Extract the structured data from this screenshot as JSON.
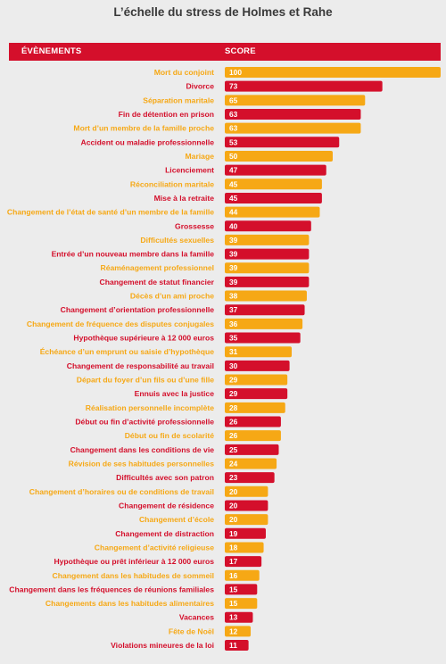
{
  "title": "L’échelle du stress de Holmes et Rahe",
  "header": {
    "events_label": "ÉVÈNEMENTS",
    "score_label": "SCORE"
  },
  "colors": {
    "header": "#d40f2b",
    "red": "#d40f2b",
    "orange": "#f6a815",
    "background": "#ececec"
  },
  "chart_data": {
    "type": "bar",
    "orientation": "horizontal",
    "xlim": [
      0,
      100
    ],
    "categories": [
      "Mort du conjoint",
      "Divorce",
      "Séparation maritale",
      "Fin de détention en prison",
      "Mort d’un membre de la famille proche",
      "Accident ou maladie professionnelle",
      "Mariage",
      "Licenciement",
      "Réconciliation maritale",
      "Mise à la retraite",
      "Changement de l’état de santé d’un membre de la famille",
      "Grossesse",
      "Difficultés sexuelles",
      "Entrée d’un nouveau membre dans la famille",
      "Réaménagement professionnel",
      "Changement de statut financier",
      "Décès d’un ami proche",
      "Changement d’orientation professionnelle",
      "Changement de fréquence des disputes conjugales",
      "Hypothèque supérieure à 12 000 euros",
      "Échéance d’un emprunt ou saisie d’hypothèque",
      "Changement de responsabilité au travail",
      "Départ du foyer d’un fils ou d’une fille",
      "Ennuis avec la justice",
      "Réalisation personnelle incomplète",
      "Début ou fin d’activité professionnelle",
      "Début ou fin de scolarité",
      "Changement dans les conditions de vie",
      "Révision de ses habitudes personnelles",
      "Difficultés avec son patron",
      "Changement d’horaires ou de conditions de travail",
      "Changement de résidence",
      "Changement d’école",
      "Changement de distraction",
      "Changement d’activité religieuse",
      "Hypothèque ou prêt inférieur à 12 000 euros",
      "Changement dans les habitudes de sommeil",
      "Changement dans les fréquences de réunions familiales",
      "Changements dans les habitudes alimentaires",
      "Vacances",
      "Fête de Noël",
      "Violations mineures de la loi"
    ],
    "values": [
      100,
      73,
      65,
      63,
      63,
      53,
      50,
      47,
      45,
      45,
      44,
      40,
      39,
      39,
      39,
      39,
      38,
      37,
      36,
      35,
      31,
      30,
      29,
      29,
      28,
      26,
      26,
      25,
      24,
      23,
      20,
      20,
      20,
      19,
      18,
      17,
      16,
      15,
      15,
      13,
      12,
      11
    ],
    "value_labels": [
      "100",
      "73",
      "65",
      "63",
      "63",
      "53",
      "50",
      "47",
      "45",
      "45",
      "44",
      "40",
      "39",
      "39",
      "39",
      "39",
      "38",
      "37",
      "36",
      "35",
      "31",
      "30",
      "29",
      "29",
      "28",
      "26",
      "26",
      "25",
      "24",
      "23",
      "20",
      "20",
      "20",
      "19",
      "18",
      "17",
      "16",
      "15",
      "15",
      "13",
      "12",
      "11"
    ],
    "bar_colors": [
      "orange",
      "red",
      "orange",
      "red",
      "orange",
      "red",
      "orange",
      "red",
      "orange",
      "red",
      "orange",
      "red",
      "orange",
      "red",
      "orange",
      "red",
      "orange",
      "red",
      "orange",
      "red",
      "orange",
      "red",
      "orange",
      "red",
      "orange",
      "red",
      "orange",
      "red",
      "orange",
      "red",
      "orange",
      "red",
      "orange",
      "red",
      "orange",
      "red",
      "orange",
      "red",
      "orange",
      "red",
      "orange",
      "red"
    ],
    "xlabel": "",
    "ylabel": "",
    "grid": false,
    "legend": "none"
  }
}
